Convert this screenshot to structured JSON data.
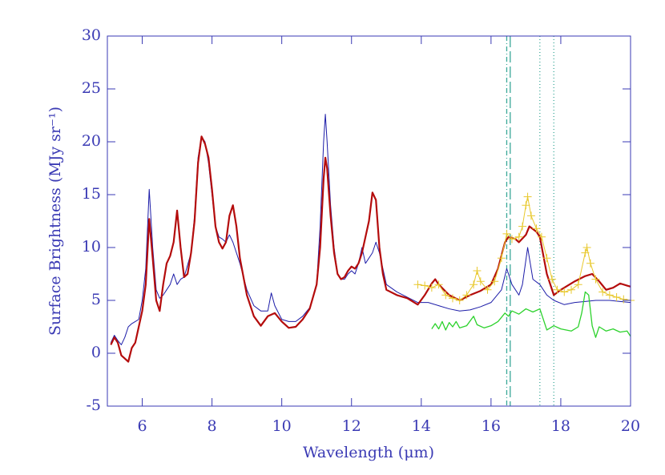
{
  "chart_data": {
    "type": "line",
    "x_label": "Wavelength (μm)",
    "y_label": "Surface Brightness (MJy sr⁻¹)",
    "xlim": [
      5,
      20
    ],
    "xticks": [
      6,
      8,
      10,
      12,
      14,
      16,
      18,
      20
    ],
    "ylim": [
      -5,
      30
    ],
    "yticks": [
      -5,
      0,
      5,
      10,
      15,
      20,
      25,
      30
    ],
    "axis_color": "#3a3ab4",
    "vlines": [
      16.45,
      16.55,
      17.4,
      17.8
    ],
    "vline_dash": [
      "6,3,1,3",
      "14,5",
      "1,3",
      "1,3"
    ],
    "vline_color": "#3aa898",
    "series": [
      {
        "color": "#1c1ca8",
        "width": 1,
        "marker": false,
        "x": [
          5.1,
          5.2,
          5.3,
          5.4,
          5.5,
          5.6,
          5.7,
          5.8,
          5.9,
          6.0,
          6.1,
          6.2,
          6.3,
          6.4,
          6.5,
          6.6,
          6.7,
          6.8,
          6.9,
          7.0,
          7.1,
          7.2,
          7.4,
          7.5,
          7.6,
          7.7,
          7.8,
          7.9,
          8.0,
          8.1,
          8.2,
          8.3,
          8.4,
          8.5,
          8.6,
          8.8,
          9.0,
          9.2,
          9.4,
          9.6,
          9.7,
          9.8,
          10.0,
          10.2,
          10.4,
          10.6,
          10.8,
          11.0,
          11.1,
          11.2,
          11.25,
          11.3,
          11.4,
          11.5,
          11.6,
          11.7,
          11.8,
          11.9,
          12.0,
          12.1,
          12.2,
          12.3,
          12.4,
          12.6,
          12.7,
          12.8,
          13.0,
          13.3,
          13.6,
          13.9,
          14.2,
          14.5,
          14.8,
          15.1,
          15.4,
          15.7,
          16.0,
          16.3,
          16.45,
          16.6,
          16.8,
          16.9,
          17.05,
          17.2,
          17.4,
          17.6,
          17.8,
          18.1,
          18.4,
          18.7,
          19.0,
          19.4,
          19.7,
          20.0
        ],
        "values": [
          1.0,
          1.7,
          1.2,
          0.8,
          1.5,
          2.5,
          2.8,
          3.0,
          3.2,
          5.0,
          8.0,
          15.5,
          10.0,
          6.0,
          5.2,
          5.5,
          6.0,
          6.5,
          7.5,
          6.5,
          7.0,
          7.2,
          9.5,
          13.0,
          18.5,
          20.5,
          20.0,
          18.0,
          15.0,
          12.0,
          11.0,
          10.8,
          10.5,
          11.2,
          10.5,
          8.5,
          6.0,
          4.5,
          4.0,
          4.0,
          5.7,
          4.5,
          3.2,
          3.0,
          3.0,
          3.5,
          4.3,
          6.5,
          12.0,
          20.0,
          22.6,
          20.0,
          14.0,
          10.0,
          7.5,
          7.0,
          7.0,
          7.5,
          7.8,
          7.5,
          8.5,
          10.0,
          8.5,
          9.5,
          10.5,
          9.5,
          6.5,
          5.8,
          5.3,
          4.8,
          4.8,
          4.5,
          4.2,
          4.0,
          4.1,
          4.4,
          4.8,
          6.0,
          8.0,
          6.5,
          5.5,
          6.5,
          10.0,
          7.0,
          6.5,
          5.5,
          5.0,
          4.6,
          4.8,
          4.9,
          5.0,
          5.0,
          4.9,
          4.8
        ]
      },
      {
        "color": "#b40c0c",
        "width": 2.2,
        "marker": false,
        "x": [
          5.1,
          5.2,
          5.3,
          5.4,
          5.5,
          5.6,
          5.7,
          5.8,
          5.9,
          6.0,
          6.1,
          6.2,
          6.3,
          6.4,
          6.5,
          6.6,
          6.7,
          6.8,
          6.9,
          7.0,
          7.1,
          7.2,
          7.3,
          7.4,
          7.5,
          7.6,
          7.7,
          7.8,
          7.9,
          8.0,
          8.1,
          8.2,
          8.3,
          8.4,
          8.5,
          8.6,
          8.7,
          8.8,
          9.0,
          9.2,
          9.4,
          9.6,
          9.8,
          10.0,
          10.2,
          10.4,
          10.6,
          10.8,
          11.0,
          11.1,
          11.2,
          11.25,
          11.3,
          11.4,
          11.5,
          11.6,
          11.7,
          11.8,
          11.9,
          12.0,
          12.1,
          12.2,
          12.3,
          12.4,
          12.5,
          12.6,
          12.7,
          12.8,
          12.9,
          13.0,
          13.3,
          13.6,
          13.9,
          14.1,
          14.3,
          14.4,
          14.5,
          14.8,
          15.1,
          15.4,
          15.7,
          16.0,
          16.2,
          16.4,
          16.5,
          16.7,
          16.8,
          17.0,
          17.1,
          17.3,
          17.4,
          17.6,
          17.8,
          18.0,
          18.4,
          18.7,
          18.9,
          19.1,
          19.3,
          19.5,
          19.7,
          19.9,
          20.0
        ],
        "values": [
          0.8,
          1.5,
          1.0,
          -0.2,
          -0.5,
          -0.8,
          0.5,
          1.0,
          2.5,
          4.0,
          6.5,
          12.7,
          9.0,
          5.0,
          4.0,
          6.5,
          8.5,
          9.2,
          10.5,
          13.5,
          10.0,
          7.2,
          7.5,
          9.5,
          12.5,
          18.0,
          20.5,
          19.8,
          18.5,
          15.5,
          12.0,
          10.5,
          9.9,
          10.5,
          13.0,
          14.0,
          12.0,
          9.0,
          5.5,
          3.5,
          2.6,
          3.5,
          3.8,
          3.0,
          2.4,
          2.5,
          3.2,
          4.2,
          6.5,
          10.0,
          16.5,
          18.5,
          17.5,
          13.0,
          9.5,
          7.5,
          7.0,
          7.2,
          7.8,
          8.2,
          8.0,
          8.5,
          9.5,
          11.0,
          12.5,
          15.2,
          14.5,
          10.0,
          7.5,
          6.0,
          5.5,
          5.2,
          4.6,
          5.5,
          6.6,
          7.0,
          6.5,
          5.5,
          5.0,
          5.5,
          5.9,
          6.5,
          8.0,
          10.5,
          11.0,
          10.8,
          10.5,
          11.2,
          12.0,
          11.5,
          11.0,
          7.5,
          5.5,
          6.0,
          6.8,
          7.3,
          7.5,
          6.8,
          6.0,
          6.2,
          6.6,
          6.4,
          6.3
        ]
      },
      {
        "color": "#e8c82c",
        "width": 1,
        "marker": true,
        "x": [
          13.9,
          14.1,
          14.3,
          14.5,
          14.7,
          14.9,
          15.1,
          15.3,
          15.5,
          15.6,
          15.7,
          15.9,
          16.1,
          16.3,
          16.45,
          16.6,
          16.8,
          16.9,
          17.0,
          17.05,
          17.15,
          17.3,
          17.45,
          17.6,
          17.75,
          17.9,
          18.1,
          18.3,
          18.5,
          18.7,
          18.75,
          18.85,
          19.0,
          19.2,
          19.4,
          19.6,
          19.8,
          20.0
        ],
        "values": [
          6.5,
          6.4,
          6.2,
          6.5,
          5.5,
          5.2,
          5.0,
          5.5,
          6.5,
          7.8,
          6.8,
          6.0,
          6.8,
          9.0,
          11.3,
          10.8,
          11.0,
          12.0,
          14.0,
          14.8,
          13.0,
          11.8,
          11.0,
          9.0,
          7.0,
          6.0,
          5.8,
          6.0,
          6.5,
          9.5,
          10.0,
          8.5,
          7.0,
          5.8,
          5.5,
          5.3,
          5.1,
          5.0
        ]
      },
      {
        "color": "#2cd22c",
        "width": 1.3,
        "marker": false,
        "x": [
          14.3,
          14.4,
          14.5,
          14.6,
          14.7,
          14.8,
          14.9,
          15.0,
          15.1,
          15.3,
          15.5,
          15.6,
          15.8,
          16.0,
          16.2,
          16.4,
          16.5,
          16.6,
          16.8,
          17.0,
          17.2,
          17.4,
          17.6,
          17.8,
          18.0,
          18.3,
          18.5,
          18.6,
          18.7,
          18.8,
          18.9,
          19.0,
          19.1,
          19.3,
          19.5,
          19.7,
          19.9,
          20.0
        ],
        "values": [
          2.3,
          2.8,
          2.3,
          3.0,
          2.2,
          2.9,
          2.5,
          3.0,
          2.4,
          2.6,
          3.5,
          2.7,
          2.4,
          2.6,
          3.0,
          3.8,
          3.5,
          4.0,
          3.7,
          4.2,
          3.9,
          4.2,
          2.2,
          2.6,
          2.3,
          2.1,
          2.5,
          3.8,
          5.8,
          5.5,
          2.6,
          1.5,
          2.5,
          2.1,
          2.3,
          2.0,
          2.1,
          1.6
        ]
      }
    ]
  }
}
